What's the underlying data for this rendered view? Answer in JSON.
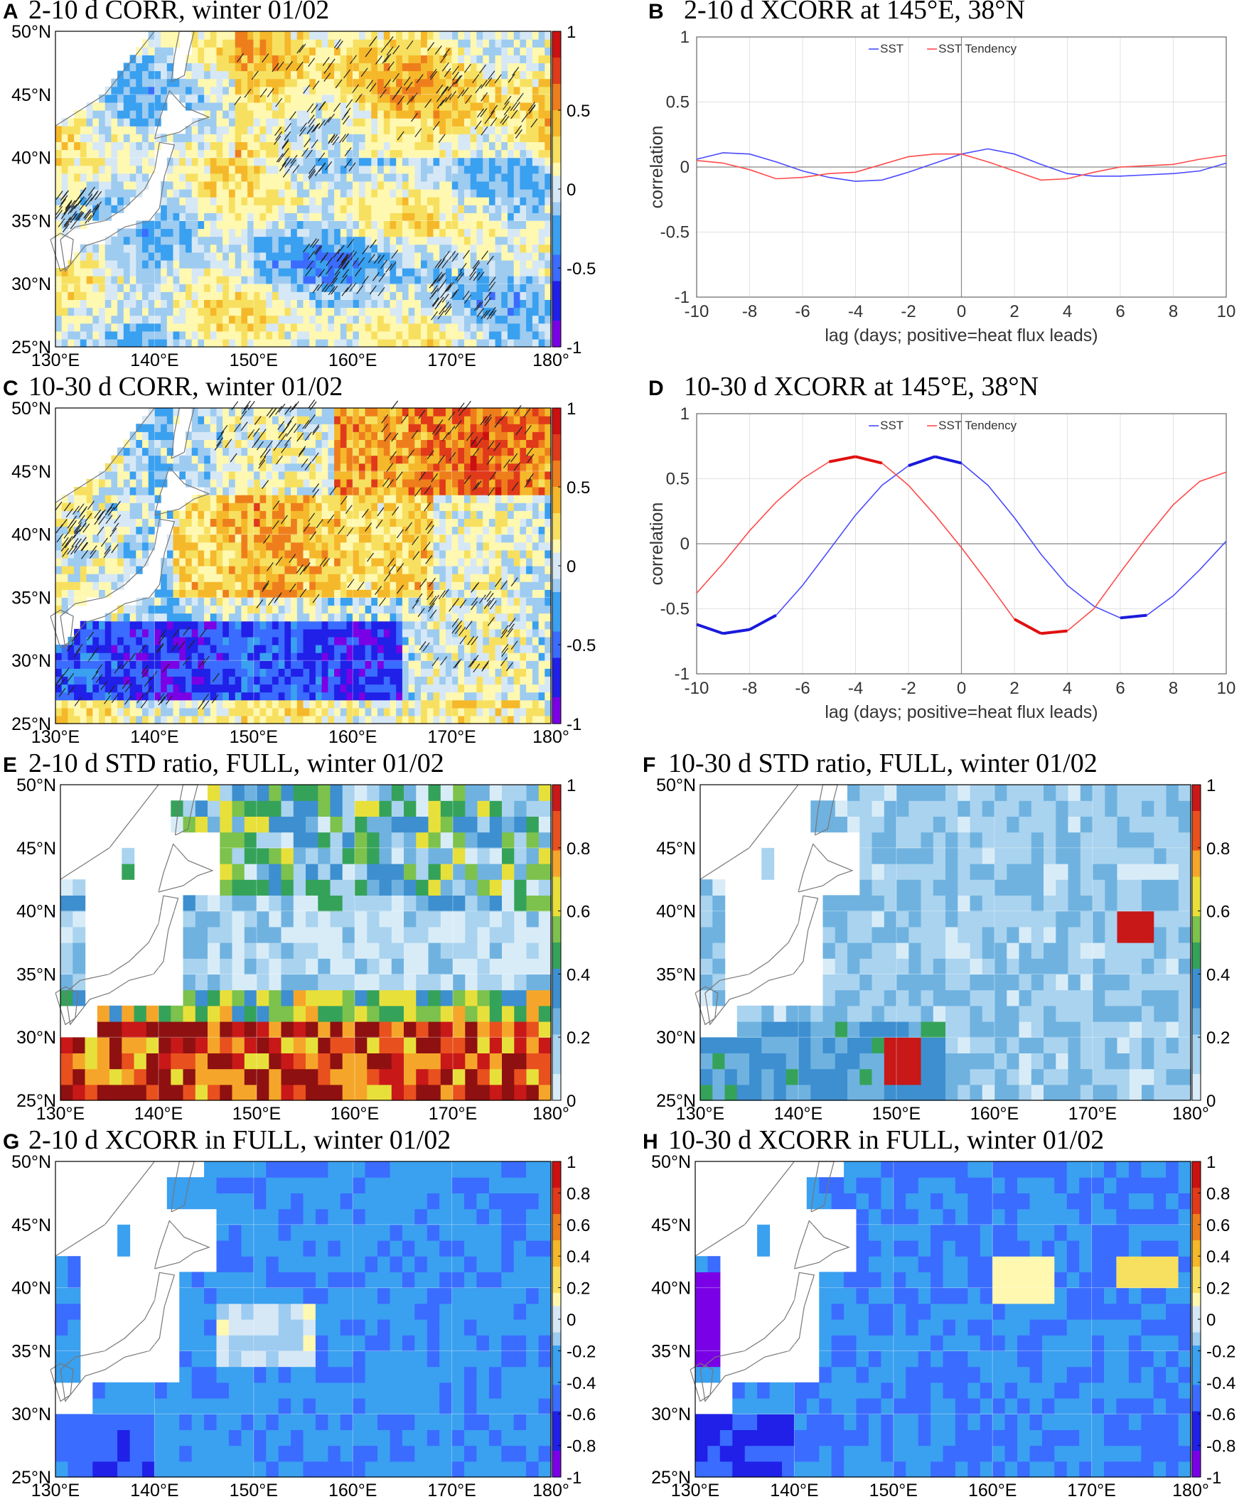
{
  "chart_data": [
    {
      "id": "A",
      "type": "heatmap",
      "title": "2-10 d CORR, winter 01/02",
      "x_ticks": [
        "130°E",
        "140°E",
        "150°E",
        "160°E",
        "170°E",
        "180°"
      ],
      "y_ticks": [
        "50°N",
        "45°N",
        "40°N",
        "35°N",
        "30°N",
        "25°N"
      ],
      "colorbar": {
        "ticks": [
          "1",
          "0.5",
          "0",
          "-0.5",
          "-1"
        ],
        "range": [
          -1,
          1
        ],
        "colormap": "diverging"
      },
      "field_description": "Mostly weak correlations (-0.3 to 0.3); positive (yellow/orange) across Kuroshio extension and north, hatching marks significance",
      "x_range": [
        130,
        180
      ],
      "y_range": [
        25,
        50
      ]
    },
    {
      "id": "B",
      "type": "line",
      "title": "2-10 d XCORR at 145°E, 38°N",
      "xlabel": "lag (days; positive=heat flux leads)",
      "ylabel": "correlation",
      "xlim": [
        -10,
        10
      ],
      "ylim": [
        -1,
        1
      ],
      "x_ticks": [
        "-10",
        "-8",
        "-6",
        "-4",
        "-2",
        "0",
        "2",
        "4",
        "6",
        "8",
        "10"
      ],
      "y_ticks": [
        "1",
        "0.5",
        "0",
        "-0.5",
        "-1"
      ],
      "legend": [
        "SST",
        "SST Tendency"
      ],
      "x": [
        -10,
        -9,
        -8,
        -7,
        -6,
        -5,
        -4,
        -3,
        -2,
        -1,
        0,
        1,
        2,
        3,
        4,
        5,
        6,
        7,
        8,
        9,
        10
      ],
      "series": [
        {
          "name": "SST",
          "color": "#4a4aff",
          "values": [
            0.06,
            0.11,
            0.1,
            0.04,
            -0.03,
            -0.08,
            -0.11,
            -0.1,
            -0.04,
            0.03,
            0.1,
            0.14,
            0.1,
            0.02,
            -0.05,
            -0.07,
            -0.07,
            -0.06,
            -0.05,
            -0.03,
            0.03
          ]
        },
        {
          "name": "SST Tendency",
          "color": "#ff4a4a",
          "values": [
            0.05,
            0.03,
            -0.02,
            -0.09,
            -0.08,
            -0.05,
            -0.04,
            0.02,
            0.08,
            0.1,
            0.1,
            0.04,
            -0.03,
            -0.1,
            -0.09,
            -0.04,
            0.0,
            0.01,
            0.02,
            0.06,
            0.09
          ]
        }
      ]
    },
    {
      "id": "C",
      "type": "heatmap",
      "title": "10-30 d CORR, winter 01/02",
      "x_ticks": [
        "130°E",
        "140°E",
        "150°E",
        "160°E",
        "170°E",
        "180°"
      ],
      "y_ticks": [
        "50°N",
        "45°N",
        "40°N",
        "35°N",
        "30°N",
        "25°N"
      ],
      "colorbar": {
        "ticks": [
          "1",
          "0.5",
          "0",
          "-0.5",
          "-1"
        ],
        "range": [
          -1,
          1
        ],
        "colormap": "diverging"
      },
      "field_description": "Strong positive (red) band near 38-48°N east of Japan; strong negative (blue) band near 28-33°N",
      "x_range": [
        130,
        180
      ],
      "y_range": [
        25,
        50
      ]
    },
    {
      "id": "D",
      "type": "line",
      "title": "10-30 d XCORR at 145°E, 38°N",
      "xlabel": "lag (days; positive=heat flux leads)",
      "ylabel": "correlation",
      "xlim": [
        -10,
        10
      ],
      "ylim": [
        -1,
        1
      ],
      "x_ticks": [
        "-10",
        "-8",
        "-6",
        "-4",
        "-2",
        "0",
        "2",
        "4",
        "6",
        "8",
        "10"
      ],
      "y_ticks": [
        "1",
        "0.5",
        "0",
        "-0.5",
        "-1"
      ],
      "legend": [
        "SST",
        "SST Tendency"
      ],
      "x": [
        -10,
        -9,
        -8,
        -7,
        -6,
        -5,
        -4,
        -3,
        -2,
        -1,
        0,
        1,
        2,
        3,
        4,
        5,
        6,
        7,
        8,
        9,
        10
      ],
      "series": [
        {
          "name": "SST",
          "color": "#4a4aff",
          "values": [
            -0.62,
            -0.69,
            -0.66,
            -0.55,
            -0.32,
            -0.05,
            0.22,
            0.45,
            0.6,
            0.67,
            0.62,
            0.45,
            0.2,
            -0.08,
            -0.32,
            -0.48,
            -0.57,
            -0.55,
            -0.4,
            -0.2,
            0.02
          ]
        },
        {
          "name": "SST Tendency",
          "color": "#ff4a4a",
          "values": [
            -0.38,
            -0.15,
            0.1,
            0.32,
            0.5,
            0.63,
            0.67,
            0.62,
            0.45,
            0.22,
            -0.03,
            -0.3,
            -0.58,
            -0.69,
            -0.67,
            -0.5,
            -0.22,
            0.05,
            0.3,
            0.48,
            0.55
          ]
        }
      ]
    },
    {
      "id": "E",
      "type": "heatmap",
      "title": "2-10 d STD ratio, FULL, winter 01/02",
      "x_ticks": [
        "130°E",
        "140°E",
        "150°E",
        "160°E",
        "170°E",
        "180°"
      ],
      "y_ticks": [
        "50°N",
        "45°N",
        "40°N",
        "35°N",
        "30°N",
        "25°N"
      ],
      "colorbar": {
        "ticks": [
          "1",
          "0.8",
          "0.6",
          "0.4",
          "0.2",
          "0"
        ],
        "range": [
          0,
          1
        ],
        "colormap": "jet-like"
      },
      "field_description": "High ratios (dark red, >1) in the south (25-31°N); low (light blue) band 34-40°N; mixed green/yellow north",
      "x_range": [
        130,
        180
      ],
      "y_range": [
        25,
        50
      ]
    },
    {
      "id": "F",
      "type": "heatmap",
      "title": "10-30 d STD ratio, FULL, winter 01/02",
      "x_ticks": [
        "130°E",
        "140°E",
        "150°E",
        "160°E",
        "170°E",
        "180°"
      ],
      "y_ticks": [
        "50°N",
        "45°N",
        "40°N",
        "35°N",
        "30°N",
        "25°N"
      ],
      "colorbar": {
        "ticks": [
          "1",
          "0.8",
          "0.6",
          "0.4",
          "0.2",
          "0"
        ],
        "range": [
          0,
          1
        ],
        "colormap": "jet-like"
      },
      "field_description": "Mostly low ratios (light blue, 0.1-0.3); isolated higher spots near 151°E 28°N and 174°E 39°N",
      "x_range": [
        130,
        180
      ],
      "y_range": [
        25,
        50
      ]
    },
    {
      "id": "G",
      "type": "heatmap",
      "title": "2-10 d XCORR in FULL, winter 01/02",
      "x_ticks": [
        "130°E",
        "140°E",
        "150°E",
        "160°E",
        "170°E",
        "180°"
      ],
      "y_ticks": [
        "50°N",
        "45°N",
        "40°N",
        "35°N",
        "30°N",
        "25°N"
      ],
      "colorbar": {
        "ticks": [
          "1",
          "0.8",
          "0.6",
          "0.4",
          "0.2",
          "0",
          "-0.2",
          "-0.4",
          "-0.6",
          "-0.8",
          "-1"
        ],
        "range": [
          -1,
          1
        ],
        "colormap": "diverging"
      },
      "field_description": "Predominantly weak negative (-0.2 to -0.5, blue); small near-zero yellow patches around 148-155°E 34-39°N",
      "x_range": [
        130,
        180
      ],
      "y_range": [
        25,
        50
      ]
    },
    {
      "id": "H",
      "type": "heatmap",
      "title": "10-30 d XCORR in FULL, winter 01/02",
      "x_ticks": [
        "130°E",
        "140°E",
        "150°E",
        "160°E",
        "170°E",
        "180°"
      ],
      "y_ticks": [
        "50°N",
        "45°N",
        "40°N",
        "35°N",
        "30°N",
        "25°N"
      ],
      "colorbar": {
        "ticks": [
          "1",
          "0.8",
          "0.6",
          "0.4",
          "0.2",
          "0",
          "-0.2",
          "-0.4",
          "-0.6",
          "-0.8",
          "-1"
        ],
        "range": [
          -1,
          1
        ],
        "colormap": "diverging"
      },
      "field_description": "Mostly negative (-0.3 to -0.8); strong negative near 130-134°E; near-zero/positive yellow spots near 160-166°E 41°N and 172-178°E 41°N",
      "x_range": [
        130,
        180
      ],
      "y_range": [
        25,
        50
      ]
    }
  ]
}
